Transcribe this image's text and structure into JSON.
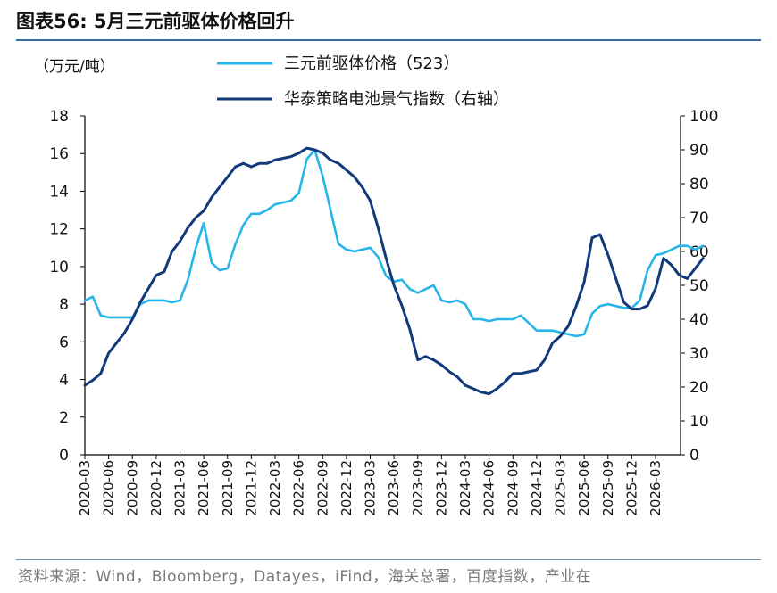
{
  "header": {
    "title": "图表56:  5月三元前驱体价格回升"
  },
  "footer": {
    "source": "资料来源：Wind，Bloomberg，Datayes，iFind，海关总署，百度指数，产业在"
  },
  "chart_data": {
    "type": "line",
    "left_axis_unit": "（万元/吨）",
    "ylim_left": [
      0,
      18
    ],
    "yticks_left": [
      "0",
      "2",
      "4",
      "6",
      "8",
      "10",
      "12",
      "14",
      "16",
      "18"
    ],
    "ylim_right": [
      0,
      100
    ],
    "yticks_right": [
      "0",
      "10",
      "20",
      "30",
      "40",
      "50",
      "60",
      "70",
      "80",
      "90",
      "100"
    ],
    "x_tick_labels": [
      "2020-03",
      "2020-06",
      "2020-09",
      "2020-12",
      "2021-03",
      "2021-06",
      "2021-09",
      "2021-12",
      "2022-03",
      "2022-06",
      "2022-09",
      "2022-12",
      "2023-03",
      "2023-06",
      "2023-09",
      "2023-12",
      "2024-03",
      "2024-06",
      "2024-09",
      "2024-12",
      "2025-03",
      "2025-06",
      "2025-09",
      "2025-12",
      "2026-03"
    ],
    "x_start": "2020-03",
    "grid": false,
    "legend_position": "top",
    "series": [
      {
        "name": "三元前驱体价格（523）",
        "axis": "left",
        "color": "#27b4e8",
        "start_month": "2020-03",
        "values": [
          8.2,
          8.4,
          7.4,
          7.3,
          7.3,
          7.3,
          7.3,
          8.0,
          8.2,
          8.2,
          8.2,
          8.1,
          8.2,
          9.3,
          11.0,
          12.3,
          10.2,
          9.8,
          9.9,
          11.2,
          12.2,
          12.8,
          12.8,
          13.0,
          13.3,
          13.4,
          13.5,
          13.9,
          15.7,
          16.2,
          14.8,
          13.0,
          11.2,
          10.9,
          10.8,
          10.9,
          11.0,
          10.5,
          9.5,
          9.2,
          9.3,
          8.8,
          8.6,
          8.8,
          9.0,
          8.2,
          8.1,
          8.2,
          8.0,
          7.2,
          7.2,
          7.1,
          7.2,
          7.2,
          7.2,
          7.4,
          7.0,
          6.6,
          6.6,
          6.6,
          6.5,
          6.4,
          6.3,
          6.4,
          7.5,
          7.9,
          8.0,
          7.9,
          7.8,
          7.8,
          8.2,
          9.8,
          10.6,
          10.7,
          10.9,
          11.1,
          11.1,
          10.9,
          11.1
        ]
      },
      {
        "name": "华泰策略电池景气指数（右轴）",
        "axis": "right",
        "color": "#12397a",
        "start_month": "2020-03",
        "values": [
          20.5,
          22,
          24,
          30,
          33,
          36,
          40,
          45,
          49,
          53,
          54,
          60,
          63,
          67,
          70,
          72,
          76,
          79,
          82,
          85,
          86,
          85,
          86,
          86,
          87,
          87.5,
          88,
          89,
          90.5,
          90,
          89,
          87,
          86,
          84,
          82,
          79,
          75,
          67,
          58,
          50,
          44,
          37,
          28,
          29,
          28,
          26.5,
          24.5,
          23,
          20.5,
          19.5,
          18.5,
          18,
          19.5,
          21.5,
          24,
          24,
          24.5,
          25,
          28,
          33,
          35,
          38,
          44,
          51,
          64,
          65,
          59,
          52,
          45,
          43,
          43,
          44,
          49,
          58,
          56,
          53,
          52,
          55,
          58
        ]
      }
    ]
  }
}
